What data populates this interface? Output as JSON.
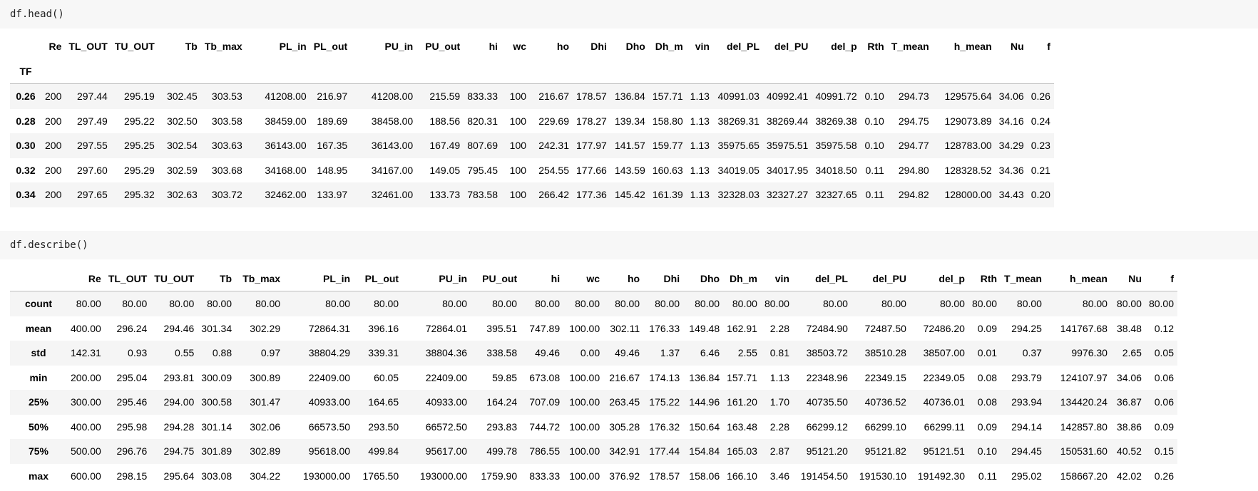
{
  "cells": [
    {
      "code": "df.head()",
      "index_name": "TF",
      "columns": [
        "Re",
        "TL_OUT",
        "TU_OUT",
        "Tb",
        "Tb_max",
        "PL_in",
        "PL_out",
        "PU_in",
        "PU_out",
        "hi",
        "wc",
        "ho",
        "Dhi",
        "Dho",
        "Dh_m",
        "vin",
        "del_PL",
        "del_PU",
        "del_p",
        "Rth",
        "T_mean",
        "h_mean",
        "Nu",
        "f"
      ],
      "rows": [
        {
          "index": "0.26",
          "values": [
            "200",
            "297.44",
            "295.19",
            "302.45",
            "303.53",
            "41208.00",
            "216.97",
            "41208.00",
            "215.59",
            "833.33",
            "100",
            "216.67",
            "178.57",
            "136.84",
            "157.71",
            "1.13",
            "40991.03",
            "40992.41",
            "40991.72",
            "0.10",
            "294.73",
            "129575.64",
            "34.06",
            "0.26"
          ]
        },
        {
          "index": "0.28",
          "values": [
            "200",
            "297.49",
            "295.22",
            "302.50",
            "303.58",
            "38459.00",
            "189.69",
            "38458.00",
            "188.56",
            "820.31",
            "100",
            "229.69",
            "178.27",
            "139.34",
            "158.80",
            "1.13",
            "38269.31",
            "38269.44",
            "38269.38",
            "0.10",
            "294.75",
            "129073.89",
            "34.16",
            "0.24"
          ]
        },
        {
          "index": "0.30",
          "values": [
            "200",
            "297.55",
            "295.25",
            "302.54",
            "303.63",
            "36143.00",
            "167.35",
            "36143.00",
            "167.49",
            "807.69",
            "100",
            "242.31",
            "177.97",
            "141.57",
            "159.77",
            "1.13",
            "35975.65",
            "35975.51",
            "35975.58",
            "0.10",
            "294.77",
            "128783.00",
            "34.29",
            "0.23"
          ]
        },
        {
          "index": "0.32",
          "values": [
            "200",
            "297.60",
            "295.29",
            "302.59",
            "303.68",
            "34168.00",
            "148.95",
            "34167.00",
            "149.05",
            "795.45",
            "100",
            "254.55",
            "177.66",
            "143.59",
            "160.63",
            "1.13",
            "34019.05",
            "34017.95",
            "34018.50",
            "0.11",
            "294.80",
            "128328.52",
            "34.36",
            "0.21"
          ]
        },
        {
          "index": "0.34",
          "values": [
            "200",
            "297.65",
            "295.32",
            "302.63",
            "303.72",
            "32462.00",
            "133.97",
            "32461.00",
            "133.73",
            "783.58",
            "100",
            "266.42",
            "177.36",
            "145.42",
            "161.39",
            "1.13",
            "32328.03",
            "32327.27",
            "32327.65",
            "0.11",
            "294.82",
            "128000.00",
            "34.43",
            "0.20"
          ]
        }
      ]
    },
    {
      "code": "df.describe()",
      "index_name": "",
      "columns": [
        "Re",
        "TL_OUT",
        "TU_OUT",
        "Tb",
        "Tb_max",
        "PL_in",
        "PL_out",
        "PU_in",
        "PU_out",
        "hi",
        "wc",
        "ho",
        "Dhi",
        "Dho",
        "Dh_m",
        "vin",
        "del_PL",
        "del_PU",
        "del_p",
        "Rth",
        "T_mean",
        "h_mean",
        "Nu",
        "f"
      ],
      "rows": [
        {
          "index": "count",
          "values": [
            "80.00",
            "80.00",
            "80.00",
            "80.00",
            "80.00",
            "80.00",
            "80.00",
            "80.00",
            "80.00",
            "80.00",
            "80.00",
            "80.00",
            "80.00",
            "80.00",
            "80.00",
            "80.00",
            "80.00",
            "80.00",
            "80.00",
            "80.00",
            "80.00",
            "80.00",
            "80.00",
            "80.00"
          ]
        },
        {
          "index": "mean",
          "values": [
            "400.00",
            "296.24",
            "294.46",
            "301.34",
            "302.29",
            "72864.31",
            "396.16",
            "72864.01",
            "395.51",
            "747.89",
            "100.00",
            "302.11",
            "176.33",
            "149.48",
            "162.91",
            "2.28",
            "72484.90",
            "72487.50",
            "72486.20",
            "0.09",
            "294.25",
            "141767.68",
            "38.48",
            "0.12"
          ]
        },
        {
          "index": "std",
          "values": [
            "142.31",
            "0.93",
            "0.55",
            "0.88",
            "0.97",
            "38804.29",
            "339.31",
            "38804.36",
            "338.58",
            "49.46",
            "0.00",
            "49.46",
            "1.37",
            "6.46",
            "2.55",
            "0.81",
            "38503.72",
            "38510.28",
            "38507.00",
            "0.01",
            "0.37",
            "9976.30",
            "2.65",
            "0.05"
          ]
        },
        {
          "index": "min",
          "values": [
            "200.00",
            "295.04",
            "293.81",
            "300.09",
            "300.89",
            "22409.00",
            "60.05",
            "22409.00",
            "59.85",
            "673.08",
            "100.00",
            "216.67",
            "174.13",
            "136.84",
            "157.71",
            "1.13",
            "22348.96",
            "22349.15",
            "22349.05",
            "0.08",
            "293.79",
            "124107.97",
            "34.06",
            "0.06"
          ]
        },
        {
          "index": "25%",
          "values": [
            "300.00",
            "295.46",
            "294.00",
            "300.58",
            "301.47",
            "40933.00",
            "164.65",
            "40933.00",
            "164.24",
            "707.09",
            "100.00",
            "263.45",
            "175.22",
            "144.96",
            "161.20",
            "1.70",
            "40735.50",
            "40736.52",
            "40736.01",
            "0.08",
            "293.94",
            "134420.24",
            "36.87",
            "0.06"
          ]
        },
        {
          "index": "50%",
          "values": [
            "400.00",
            "295.98",
            "294.28",
            "301.14",
            "302.06",
            "66573.50",
            "293.50",
            "66572.50",
            "293.83",
            "744.72",
            "100.00",
            "305.28",
            "176.32",
            "150.64",
            "163.48",
            "2.28",
            "66299.12",
            "66299.10",
            "66299.11",
            "0.09",
            "294.14",
            "142857.80",
            "38.86",
            "0.09"
          ]
        },
        {
          "index": "75%",
          "values": [
            "500.00",
            "296.76",
            "294.75",
            "301.89",
            "302.89",
            "95618.00",
            "499.84",
            "95617.00",
            "499.78",
            "786.55",
            "100.00",
            "342.91",
            "177.44",
            "154.84",
            "165.03",
            "2.87",
            "95121.20",
            "95121.82",
            "95121.51",
            "0.10",
            "294.45",
            "150531.60",
            "40.52",
            "0.15"
          ]
        },
        {
          "index": "max",
          "values": [
            "600.00",
            "298.15",
            "295.64",
            "303.08",
            "304.22",
            "193000.00",
            "1765.50",
            "193000.00",
            "1759.90",
            "833.33",
            "100.00",
            "376.92",
            "178.57",
            "158.06",
            "166.10",
            "3.46",
            "191454.50",
            "191530.10",
            "191492.30",
            "0.11",
            "295.02",
            "158667.20",
            "42.02",
            "0.26"
          ]
        }
      ]
    }
  ]
}
